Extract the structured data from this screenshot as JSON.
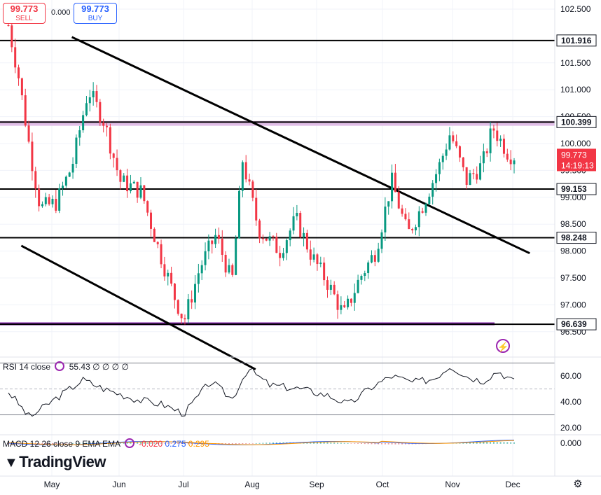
{
  "trade": {
    "sell_price": "99.773",
    "sell_label": "SELL",
    "spread": "0.000",
    "buy_price": "99.773",
    "buy_label": "BUY"
  },
  "brand": {
    "name": "TradingView"
  },
  "colors": {
    "up": "#089981",
    "down": "#f23645",
    "resistance_band": "#e1bee7",
    "support_band": "#7b1fa2",
    "rsi": "#131722",
    "macd": "#2962ff",
    "signal": "#ff9800"
  },
  "price_axis": {
    "ticks": [
      "102.500",
      "101.500",
      "101.000",
      "100.500",
      "100.000",
      "99.500",
      "99.000",
      "98.500",
      "98.000",
      "97.500",
      "97.000",
      "96.500"
    ],
    "current_price": "99.773",
    "countdown": "14:19:13"
  },
  "levels": [
    {
      "value": 101.916,
      "label": "101.916"
    },
    {
      "value": 100.399,
      "label": "100.399"
    },
    {
      "value": 99.153,
      "label": "99.153"
    },
    {
      "value": 98.248,
      "label": "98.248"
    },
    {
      "value": 96.639,
      "label": "96.639"
    }
  ],
  "time_axis": [
    "May",
    "Jun",
    "Jul",
    "Aug",
    "Sep",
    "Oct",
    "Nov",
    "Dec"
  ],
  "rsi": {
    "legend_name": "RSI 14 close",
    "legend_value": "55.43",
    "legend_extra": "∅ ∅ ∅ ∅",
    "ticks": [
      "60.00",
      "40.00",
      "20.00"
    ],
    "upper": 70,
    "lower": 30,
    "mid": 50
  },
  "macd": {
    "legend_name": "MACD 12 26 close 9 EMA EMA",
    "legend_v1": "-0.020",
    "legend_v2": "0.275",
    "legend_v3": "0.295",
    "ticks": [
      "0.000"
    ]
  },
  "chart_data": {
    "type": "candlestick",
    "timeframe": "daily",
    "last_price": 99.773,
    "x_months": [
      "May",
      "Jun",
      "Jul",
      "Aug",
      "Sep",
      "Oct",
      "Nov",
      "Dec"
    ],
    "y_range": [
      96.2,
      102.7
    ],
    "close_path": [
      {
        "t": 0.0,
        "p": 102.2
      },
      {
        "t": 0.02,
        "p": 101.2
      },
      {
        "t": 0.04,
        "p": 99.9
      },
      {
        "t": 0.06,
        "p": 98.8
      },
      {
        "t": 0.09,
        "p": 98.9
      },
      {
        "t": 0.12,
        "p": 99.6
      },
      {
        "t": 0.15,
        "p": 101.0
      },
      {
        "t": 0.18,
        "p": 100.4
      },
      {
        "t": 0.21,
        "p": 99.3
      },
      {
        "t": 0.25,
        "p": 99.1
      },
      {
        "t": 0.28,
        "p": 98.1
      },
      {
        "t": 0.31,
        "p": 97.2
      },
      {
        "t": 0.33,
        "p": 96.7
      },
      {
        "t": 0.36,
        "p": 97.7
      },
      {
        "t": 0.39,
        "p": 98.3
      },
      {
        "t": 0.42,
        "p": 97.4
      },
      {
        "t": 0.44,
        "p": 99.7
      },
      {
        "t": 0.47,
        "p": 98.4
      },
      {
        "t": 0.51,
        "p": 98.0
      },
      {
        "t": 0.54,
        "p": 98.6
      },
      {
        "t": 0.57,
        "p": 97.9
      },
      {
        "t": 0.6,
        "p": 97.4
      },
      {
        "t": 0.63,
        "p": 96.8
      },
      {
        "t": 0.66,
        "p": 97.5
      },
      {
        "t": 0.69,
        "p": 98.0
      },
      {
        "t": 0.72,
        "p": 99.3
      },
      {
        "t": 0.75,
        "p": 98.3
      },
      {
        "t": 0.78,
        "p": 98.9
      },
      {
        "t": 0.81,
        "p": 99.6
      },
      {
        "t": 0.83,
        "p": 100.2
      },
      {
        "t": 0.86,
        "p": 99.3
      },
      {
        "t": 0.89,
        "p": 99.6
      },
      {
        "t": 0.91,
        "p": 100.3
      },
      {
        "t": 0.94,
        "p": 99.8
      },
      {
        "t": 0.95,
        "p": 99.773
      }
    ],
    "rsi_path": [
      {
        "t": 0.0,
        "v": 48
      },
      {
        "t": 0.04,
        "v": 28
      },
      {
        "t": 0.08,
        "v": 40
      },
      {
        "t": 0.14,
        "v": 57
      },
      {
        "t": 0.18,
        "v": 50
      },
      {
        "t": 0.24,
        "v": 42
      },
      {
        "t": 0.29,
        "v": 38
      },
      {
        "t": 0.33,
        "v": 31
      },
      {
        "t": 0.38,
        "v": 56
      },
      {
        "t": 0.42,
        "v": 42
      },
      {
        "t": 0.45,
        "v": 66
      },
      {
        "t": 0.49,
        "v": 53
      },
      {
        "t": 0.55,
        "v": 50
      },
      {
        "t": 0.6,
        "v": 45
      },
      {
        "t": 0.64,
        "v": 38
      },
      {
        "t": 0.68,
        "v": 51
      },
      {
        "t": 0.72,
        "v": 60
      },
      {
        "t": 0.76,
        "v": 55
      },
      {
        "t": 0.8,
        "v": 58
      },
      {
        "t": 0.83,
        "v": 68
      },
      {
        "t": 0.86,
        "v": 60
      },
      {
        "t": 0.89,
        "v": 56
      },
      {
        "t": 0.92,
        "v": 64
      },
      {
        "t": 0.95,
        "v": 55.43
      }
    ]
  }
}
